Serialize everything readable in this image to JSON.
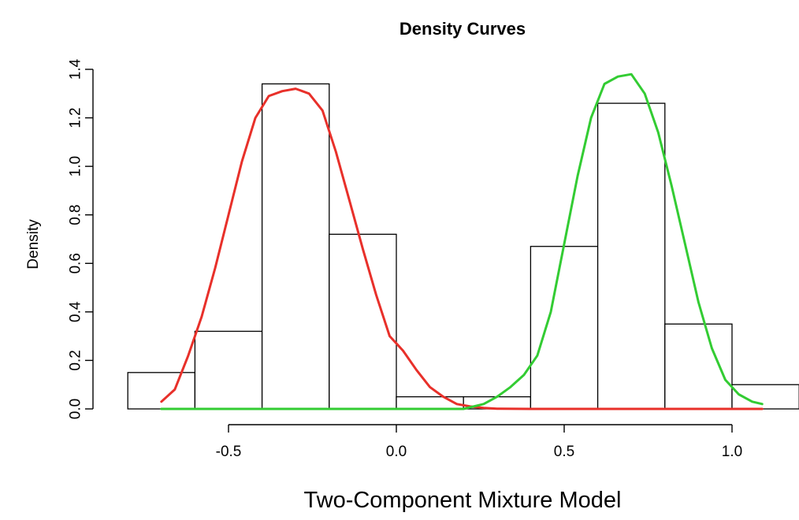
{
  "chart_data": {
    "type": "bar",
    "title": "Density Curves",
    "xlabel": "Two-Component Mixture Model",
    "ylabel": "Density",
    "xlim": [
      -0.8,
      1.2
    ],
    "ylim": [
      0,
      1.4
    ],
    "x_ticks": [
      -0.5,
      0.0,
      0.5,
      1.0
    ],
    "x_tick_labels": [
      "-0.5",
      "0.0",
      "0.5",
      "1.0"
    ],
    "y_ticks": [
      0.0,
      0.2,
      0.4,
      0.6,
      0.8,
      1.0,
      1.2,
      1.4
    ],
    "y_tick_labels": [
      "0.0",
      "0.2",
      "0.4",
      "0.6",
      "0.8",
      "1.0",
      "1.2",
      "1.4"
    ],
    "grid": false,
    "legend": "none",
    "histogram": {
      "bin_edges": [
        -0.8,
        -0.6,
        -0.4,
        -0.2,
        0.0,
        0.2,
        0.4,
        0.6,
        0.8,
        1.0,
        1.2
      ],
      "values": [
        0.15,
        0.32,
        1.34,
        0.72,
        0.05,
        0.05,
        0.67,
        1.26,
        0.35,
        0.1
      ]
    },
    "series": [
      {
        "type": "line",
        "color": "#e8302a",
        "x": [
          -0.7,
          -0.66,
          -0.62,
          -0.58,
          -0.54,
          -0.5,
          -0.46,
          -0.42,
          -0.38,
          -0.34,
          -0.3,
          -0.28,
          -0.26,
          -0.22,
          -0.18,
          -0.14,
          -0.1,
          -0.06,
          -0.02,
          0.02,
          0.06,
          0.1,
          0.14,
          0.18,
          0.22,
          0.26,
          0.3,
          0.4,
          0.6,
          0.8,
          1.0,
          1.09
        ],
        "y": [
          0.03,
          0.08,
          0.22,
          0.38,
          0.58,
          0.8,
          1.02,
          1.2,
          1.29,
          1.31,
          1.32,
          1.31,
          1.3,
          1.23,
          1.06,
          0.86,
          0.66,
          0.47,
          0.3,
          0.24,
          0.16,
          0.09,
          0.05,
          0.02,
          0.01,
          0.004,
          0.001,
          0.0,
          0.0,
          0.0,
          0.0,
          0.0
        ]
      },
      {
        "type": "line",
        "color": "#33cc33",
        "x": [
          -0.7,
          0.0,
          0.2,
          0.26,
          0.3,
          0.34,
          0.38,
          0.42,
          0.46,
          0.5,
          0.54,
          0.58,
          0.62,
          0.66,
          0.7,
          0.74,
          0.78,
          0.82,
          0.86,
          0.9,
          0.94,
          0.98,
          1.02,
          1.06,
          1.09
        ],
        "y": [
          0.0,
          0.0,
          0.0,
          0.02,
          0.05,
          0.09,
          0.14,
          0.22,
          0.4,
          0.68,
          0.96,
          1.2,
          1.34,
          1.37,
          1.38,
          1.3,
          1.14,
          0.92,
          0.68,
          0.44,
          0.25,
          0.12,
          0.06,
          0.03,
          0.02
        ]
      }
    ]
  }
}
